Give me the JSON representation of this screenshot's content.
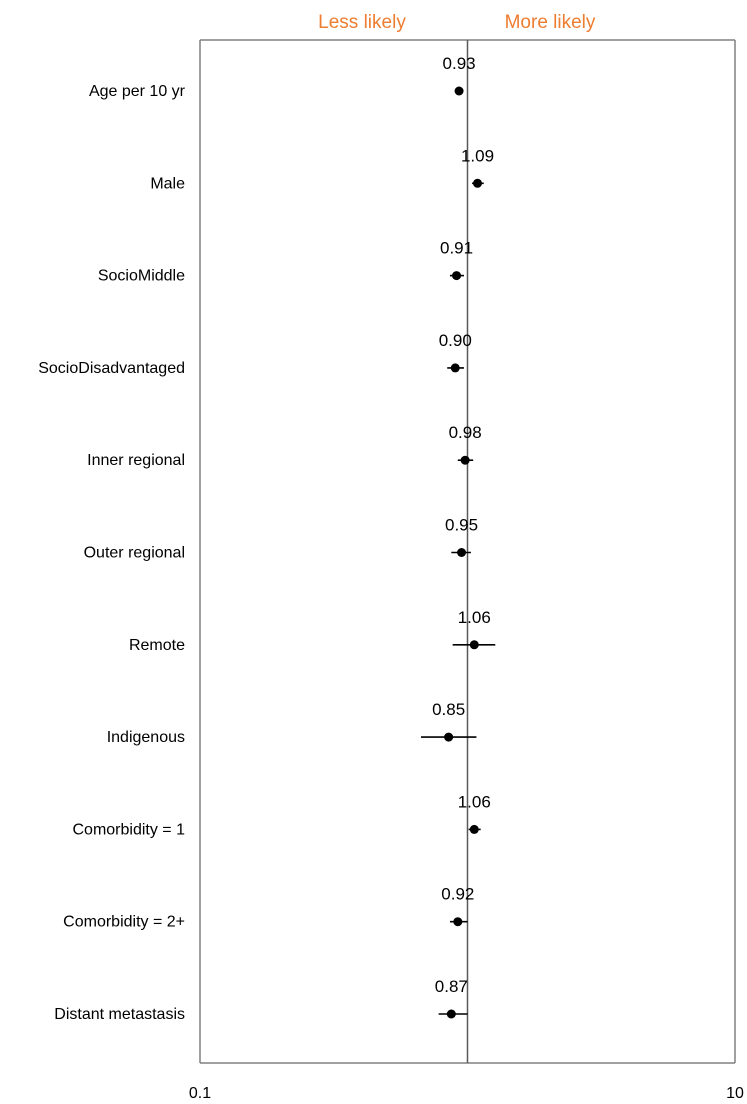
{
  "chart_data": {
    "type": "scatter",
    "title": "",
    "xlabel": "",
    "ylabel": "",
    "x_scale": "log",
    "xlim": [
      0.1,
      10
    ],
    "x_ticks": [
      "0.1",
      "10"
    ],
    "reference_line": 1,
    "header_left": "Less likely",
    "header_right": "More likely",
    "header_color": "#ED7D31",
    "marker_color": "#000000",
    "frame_color": "#808080",
    "grid": false,
    "points": [
      {
        "label": "Age per 10 yr",
        "value_label": "0.93",
        "estimate": 0.93,
        "ci_low": 0.92,
        "ci_high": 0.94
      },
      {
        "label": "Male",
        "value_label": "1.09",
        "estimate": 1.09,
        "ci_low": 1.04,
        "ci_high": 1.15
      },
      {
        "label": "SocioMiddle",
        "value_label": "0.91",
        "estimate": 0.91,
        "ci_low": 0.86,
        "ci_high": 0.97
      },
      {
        "label": "SocioDisadvantaged",
        "value_label": "0.90",
        "estimate": 0.9,
        "ci_low": 0.84,
        "ci_high": 0.97
      },
      {
        "label": "Inner regional",
        "value_label": "0.98",
        "estimate": 0.98,
        "ci_low": 0.92,
        "ci_high": 1.05
      },
      {
        "label": "Outer regional",
        "value_label": "0.95",
        "estimate": 0.95,
        "ci_low": 0.87,
        "ci_high": 1.03
      },
      {
        "label": "Remote",
        "value_label": "1.06",
        "estimate": 1.06,
        "ci_low": 0.88,
        "ci_high": 1.27
      },
      {
        "label": "Indigenous",
        "value_label": "0.85",
        "estimate": 0.85,
        "ci_low": 0.67,
        "ci_high": 1.08
      },
      {
        "label": "Comorbidity = 1",
        "value_label": "1.06",
        "estimate": 1.06,
        "ci_low": 1.01,
        "ci_high": 1.12
      },
      {
        "label": "Comorbidity = 2+",
        "value_label": "0.92",
        "estimate": 0.92,
        "ci_low": 0.86,
        "ci_high": 1.0
      },
      {
        "label": "Distant metastasis",
        "value_label": "0.87",
        "estimate": 0.87,
        "ci_low": 0.78,
        "ci_high": 1.0
      }
    ]
  }
}
